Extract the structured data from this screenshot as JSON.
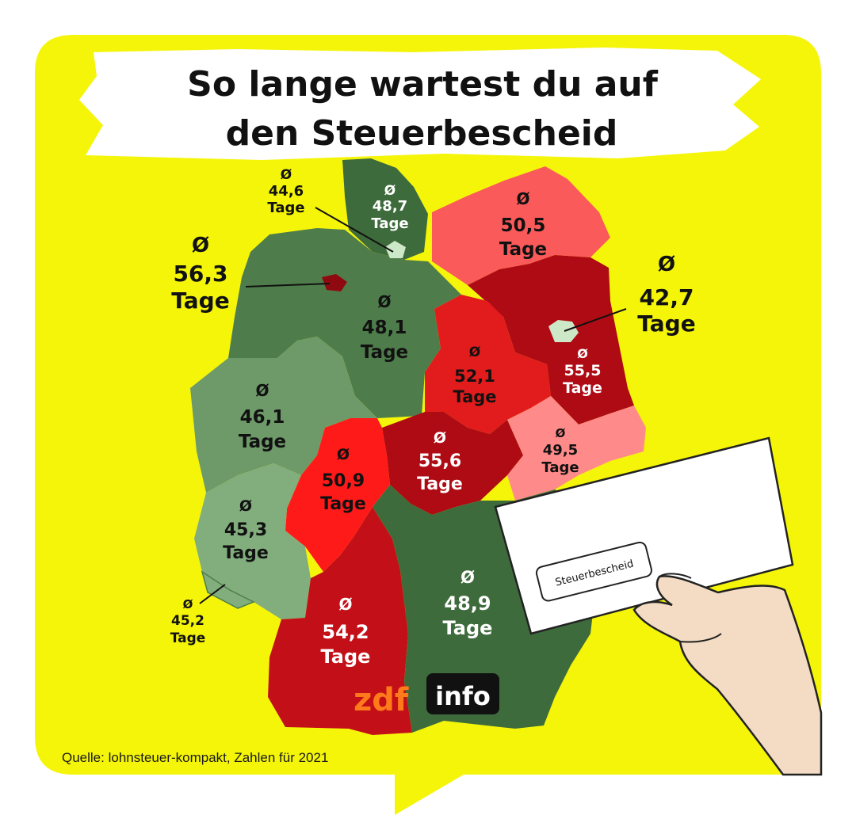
{
  "title_line1": "So lange wartest du auf",
  "title_line2": "den Steuerbescheid",
  "symbol": "Ø",
  "unit": "Tage",
  "source": "Quelle: lohnsteuer-kompakt, Zahlen für 2021",
  "envelope_label": "Steuerbescheid",
  "logo": {
    "zdf": "zdf",
    "info": "info"
  },
  "colors": {
    "background": "#f5f50a",
    "dark_green": "#3e6b3c",
    "mid_green": "#4e7d4b",
    "light_green": "#6e9a69",
    "pale_green": "#82ad7d",
    "dark_red": "#ae0b14",
    "red": "#e21c1c",
    "bright_red": "#ff1a1a",
    "light_red": "#fb5a5a",
    "pink": "#ff8a8a"
  },
  "states": [
    {
      "name": "Schleswig-Holstein",
      "value": "48,7"
    },
    {
      "name": "Hamburg",
      "value": "44,6"
    },
    {
      "name": "Mecklenburg-Vorpommern",
      "value": "50,5"
    },
    {
      "name": "Bremen",
      "value": "56,3"
    },
    {
      "name": "Niedersachsen",
      "value": "48,1"
    },
    {
      "name": "Berlin",
      "value": "42,7"
    },
    {
      "name": "Brandenburg",
      "value": "55,5"
    },
    {
      "name": "Sachsen-Anhalt",
      "value": "52,1"
    },
    {
      "name": "Nordrhein-Westfalen",
      "value": "46,1"
    },
    {
      "name": "Sachsen",
      "value": "49,5"
    },
    {
      "name": "Thüringen",
      "value": "55,6"
    },
    {
      "name": "Hessen",
      "value": "50,9"
    },
    {
      "name": "Rheinland-Pfalz",
      "value": "45,3"
    },
    {
      "name": "Saarland",
      "value": "45,2"
    },
    {
      "name": "Baden-Württemberg",
      "value": "54,2"
    },
    {
      "name": "Bayern",
      "value": "48,9"
    }
  ]
}
